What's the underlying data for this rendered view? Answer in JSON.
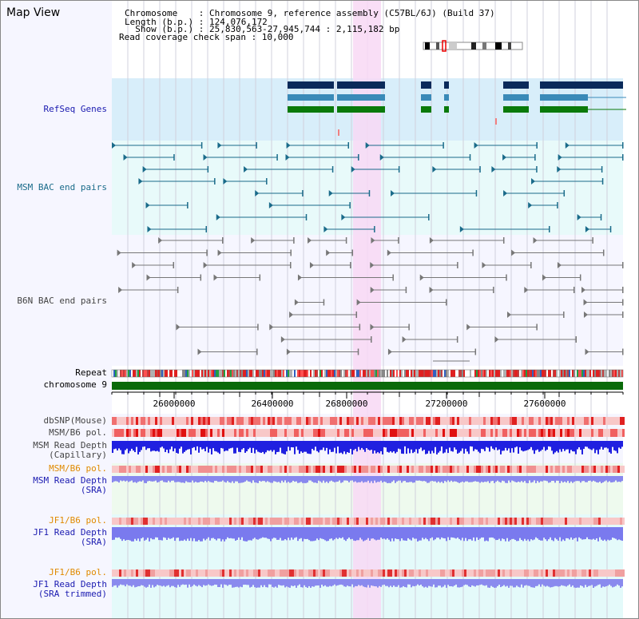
{
  "view_title": "Map View",
  "header": {
    "line1": "Chromosome    : Chromosome 9, reference assembly (C57BL/6J) (Build 37)",
    "line2": "Length (b.p.) : 124,076,172",
    "line3": "  Show (b.p.) : 25,830,563-27,945,744 : 2,115,182 bp",
    "line4": "Read coverage check span : 10,000"
  },
  "tracks": {
    "refseq": "RefSeq Genes",
    "msm_bac": "MSM BAC end pairs",
    "b6n_bac": "B6N BAC end pairs",
    "repeat": "Repeat",
    "chromosome": "chromosome 9",
    "dbsnp": "dbSNP(Mouse)",
    "msm_b6_pol_1": "MSM/B6 pol.",
    "msm_depth_cap": "MSM Read Depth\n(Capillary)",
    "msm_b6_pol_2": "MSM/B6 pol.",
    "msm_depth_sra": "MSM Read Depth\n(SRA)",
    "jf1_b6_pol_1": "JF1/B6 pol.",
    "jf1_depth_sra": "JF1 Read Depth\n(SRA)",
    "jf1_b6_pol_2": "JF1/B6 pol.",
    "jf1_depth_trim": "JF1 Read Depth\n(SRA trimmed)"
  },
  "axis": {
    "ticks": [
      "26000000",
      "26400000",
      "26800000",
      "27200000",
      "27600000"
    ]
  },
  "colors": {
    "refseq_dark": "#0a2a5a",
    "refseq_mid": "#3a8ab8",
    "refseq_green": "#0a7a0a",
    "msm_pair": "#1a6b8a",
    "b6n_pair": "#777777",
    "highlight": "#f8d8f4"
  }
}
